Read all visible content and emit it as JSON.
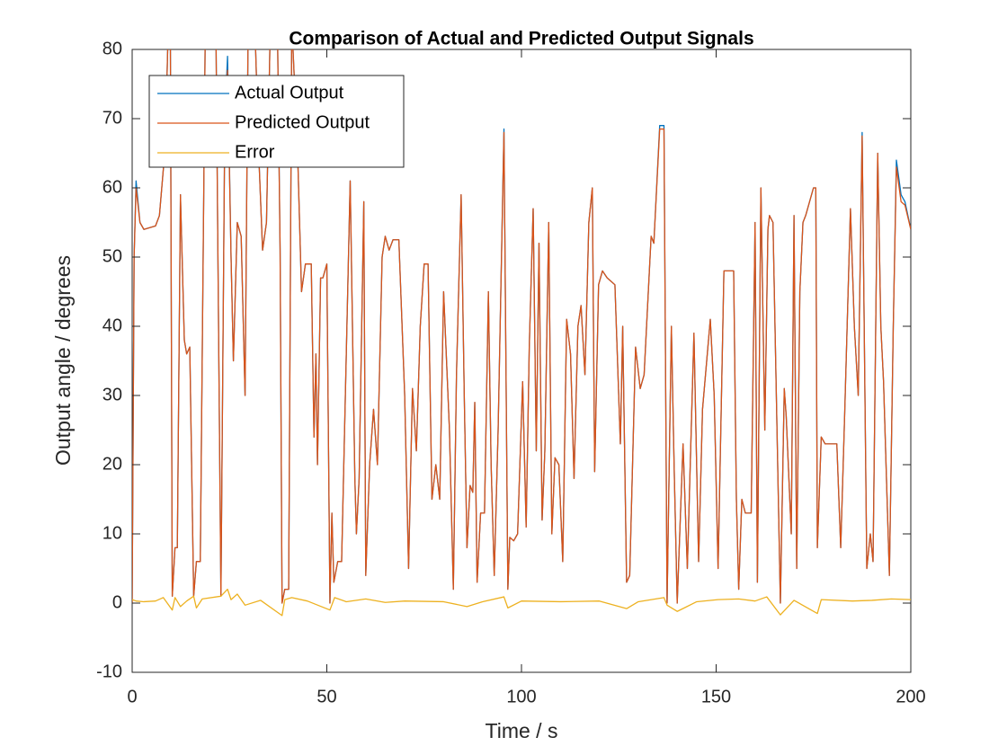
{
  "chart_data": {
    "type": "line",
    "title": "Comparison of Actual and Predicted Output Signals",
    "x_label": "Time / s",
    "y_label": "Output angle / degrees",
    "xlim": [
      0,
      200
    ],
    "xticks": [
      0,
      50,
      100,
      150,
      200
    ],
    "ylim": [
      -10,
      80
    ],
    "yticks": [
      -10,
      0,
      10,
      20,
      30,
      40,
      50,
      60,
      70,
      80
    ],
    "grid": false,
    "legend_position": "upper-left",
    "x": [
      0,
      0.5,
      1,
      2,
      3,
      6,
      7,
      8.5,
      9.3,
      9.8,
      10.3,
      11,
      11.6,
      12.4,
      13.4,
      14,
      14.8,
      15.8,
      16.5,
      17.5,
      18.8,
      20.5,
      21.5,
      22.8,
      23.8,
      24.5,
      25.4,
      26,
      27,
      28,
      29,
      29.8,
      31.5,
      32.5,
      33.5,
      34.5,
      35.5,
      37.3,
      38,
      38.5,
      39.2,
      40.2,
      41,
      42.5,
      43.5,
      44.5,
      46,
      46.7,
      47.2,
      47.6,
      48.4,
      49,
      50,
      50.8,
      51.3,
      51.8,
      52.8,
      53.8,
      56,
      57.2,
      57.6,
      58.3,
      59.5,
      60,
      61,
      62,
      63,
      64.2,
      65,
      66,
      67,
      68.5,
      70,
      71,
      72,
      73,
      74,
      75,
      76,
      77,
      78,
      79,
      80,
      81.5,
      82.5,
      83.3,
      84.5,
      85.3,
      86,
      86.8,
      87.5,
      88,
      88.6,
      89.5,
      90.5,
      91.5,
      92.2,
      93,
      94,
      95.5,
      96.5,
      97,
      98,
      99,
      100.3,
      101.2,
      102,
      103,
      103.8,
      104.5,
      105.3,
      106,
      107,
      107.8,
      108.6,
      109.6,
      110.6,
      111.6,
      112.6,
      113.5,
      114.5,
      115.3,
      116.3,
      117.3,
      118.2,
      118.8,
      119.8,
      120.8,
      122,
      124,
      125.4,
      126,
      127,
      127.8,
      129.3,
      130.5,
      131.5,
      133.3,
      134,
      135.5,
      136.6,
      137.4,
      138.5,
      139.2,
      140,
      141.5,
      142.6,
      144.3,
      145.5,
      146.5,
      148.5,
      149.5,
      150.5,
      152,
      154.5,
      155.2,
      155.8,
      156.6,
      157.5,
      159,
      160,
      160.6,
      161.5,
      162.5,
      163.3,
      163.7,
      164.6,
      166.5,
      167.5,
      168,
      169.3,
      170,
      170.7,
      171.5,
      172.3,
      173,
      175,
      175.6,
      176,
      177,
      178,
      181,
      182,
      183,
      184.5,
      185.5,
      186.5,
      187.5,
      188.7,
      189.6,
      190.3,
      191.5,
      192.3,
      193,
      194.5,
      195.5,
      196.3,
      197.5,
      198.5,
      200
    ],
    "series": [
      {
        "name": "Actual Output",
        "color": "#0072bd",
        "values": [
          0,
          50,
          61,
          55,
          54,
          54.5,
          56,
          66,
          84,
          84,
          1,
          8,
          8,
          59,
          38,
          36,
          37,
          1,
          6,
          6,
          84,
          84,
          84,
          1,
          70,
          79,
          50,
          35,
          55,
          53,
          30,
          84,
          84,
          65,
          51,
          55,
          84,
          84,
          51,
          0,
          2,
          2,
          84,
          65,
          45,
          49,
          49,
          24,
          36,
          20,
          47,
          47,
          49,
          0,
          13,
          3,
          6,
          6,
          61,
          18,
          10,
          18,
          58,
          4,
          20,
          28,
          20,
          50,
          53,
          51,
          52.5,
          52.5,
          30,
          5,
          31,
          22,
          40,
          49,
          49,
          15,
          20,
          15,
          45,
          25,
          2,
          33,
          59,
          30,
          8,
          17,
          16,
          29,
          3,
          13,
          13,
          45,
          20,
          4,
          25,
          68.5,
          2,
          9.5,
          9,
          10,
          32,
          11,
          37,
          57,
          22,
          52,
          12,
          22,
          55,
          10,
          21,
          20,
          6,
          41,
          36,
          18,
          40,
          43,
          33,
          55,
          60,
          19,
          46,
          48,
          47,
          46,
          23,
          40,
          3,
          4,
          37,
          31,
          33,
          53,
          52,
          69,
          69,
          0,
          40,
          20,
          0,
          23,
          5,
          39,
          6,
          28,
          41,
          30,
          5,
          48,
          48,
          15,
          2,
          15,
          13,
          13,
          55,
          3,
          60,
          25,
          54,
          56,
          55,
          0,
          31,
          27,
          10,
          56,
          5,
          45,
          55,
          56,
          60,
          60,
          8,
          24,
          23,
          23,
          8,
          27,
          57,
          40,
          30,
          68,
          5,
          10,
          6,
          65,
          40,
          32,
          4,
          40,
          64,
          59,
          58,
          54
        ]
      },
      {
        "name": "Predicted Output",
        "color": "#d95319",
        "values": [
          0,
          50,
          60,
          55,
          54,
          54.5,
          56,
          66,
          84,
          84,
          1,
          8,
          8,
          59,
          38,
          36,
          37,
          1,
          6,
          6,
          84,
          84,
          84,
          1,
          70,
          77,
          50,
          35,
          55,
          53,
          30,
          84,
          84,
          65,
          51,
          55,
          84,
          84,
          51,
          0,
          2,
          2,
          84,
          65,
          45,
          49,
          49,
          24,
          36,
          20,
          47,
          47,
          49,
          0,
          13,
          3,
          6,
          6,
          61,
          18,
          10,
          18,
          58,
          4,
          20,
          28,
          20,
          50,
          53,
          51,
          52.5,
          52.5,
          30,
          5,
          31,
          22,
          40,
          49,
          49,
          15,
          20,
          15,
          45,
          25,
          2,
          33,
          59,
          30,
          8,
          17,
          16,
          29,
          3,
          13,
          13,
          45,
          20,
          4,
          25,
          68,
          2,
          9.5,
          9,
          10,
          32,
          11,
          37,
          57,
          22,
          52,
          12,
          22,
          55,
          10,
          21,
          20,
          6,
          41,
          36,
          18,
          40,
          43,
          33,
          55,
          60,
          19,
          46,
          48,
          47,
          46,
          23,
          40,
          3,
          4,
          37,
          31,
          33,
          53,
          52,
          68.5,
          68.5,
          0,
          40,
          20,
          0,
          23,
          5,
          39,
          6,
          28,
          41,
          30,
          5,
          48,
          48,
          15,
          2,
          15,
          13,
          13,
          55,
          3,
          60,
          25,
          54,
          56,
          55,
          0,
          31,
          27,
          10,
          56,
          5,
          45,
          55,
          56,
          60,
          60,
          8,
          24,
          23,
          23,
          8,
          27,
          57,
          40,
          30,
          67.5,
          5,
          10,
          6,
          65,
          40,
          32,
          4,
          40,
          63,
          58,
          57.5,
          54
        ]
      },
      {
        "name": "Error",
        "color": "#edb120",
        "x": [
          0,
          1,
          3,
          6,
          8,
          10.3,
          11,
          12.4,
          14,
          15.8,
          16.5,
          18,
          22.8,
          24.5,
          25.4,
          27,
          29,
          33,
          38.5,
          39.2,
          41,
          45,
          50.8,
          52,
          55,
          60,
          65,
          70,
          80,
          86,
          90,
          95.5,
          96.5,
          100,
          110,
          120,
          127,
          130,
          136.6,
          137.4,
          140,
          145,
          150.5,
          155.8,
          160,
          163,
          166.5,
          170,
          176,
          177,
          185,
          190,
          195,
          200
        ],
        "values": [
          0.5,
          0.3,
          0.2,
          0.3,
          0.8,
          -1,
          0.8,
          -0.5,
          0.3,
          1,
          -0.7,
          0.6,
          1,
          2,
          0.5,
          1.3,
          -0.3,
          0.4,
          -1.8,
          0.5,
          0.8,
          0.3,
          -1,
          0.8,
          0.2,
          0.6,
          0.1,
          0.3,
          0.2,
          -0.5,
          0.2,
          0.9,
          -0.7,
          0.3,
          0.2,
          0.3,
          -0.8,
          0.2,
          0.8,
          -0.3,
          -1.2,
          0.2,
          0.5,
          0.6,
          0.3,
          0.9,
          -1.7,
          0.4,
          -1.5,
          0.5,
          0.3,
          0.4,
          0.6,
          0.5
        ]
      }
    ]
  }
}
